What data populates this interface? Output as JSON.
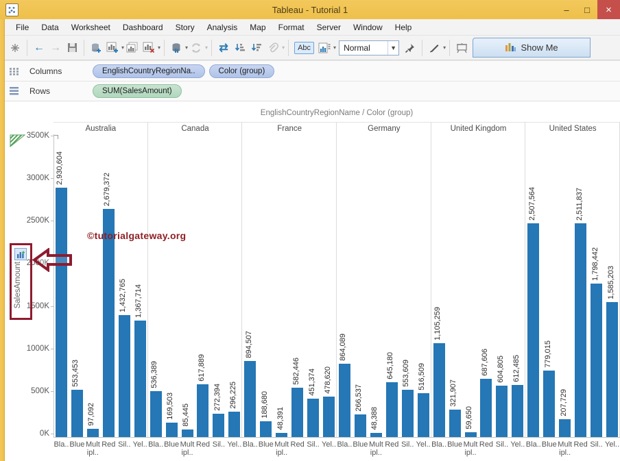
{
  "window": {
    "title": "Tableau - Tutorial 1",
    "minimize_label": "–",
    "maximize_label": "□",
    "close_label": "×"
  },
  "menu": {
    "items": [
      "File",
      "Data",
      "Worksheet",
      "Dashboard",
      "Story",
      "Analysis",
      "Map",
      "Format",
      "Server",
      "Window",
      "Help"
    ]
  },
  "toolbar": {
    "abc_label": "Abc",
    "view_mode_value": "Normal",
    "show_me_label": "Show Me",
    "icons": [
      "tableau-logo-icon",
      "back-arrow-icon",
      "forward-arrow-icon",
      "save-icon",
      "add-datasource-icon",
      "new-worksheet-icon",
      "duplicate-worksheet-icon",
      "clear-worksheet-icon",
      "datasource-icon",
      "refresh-icon",
      "swap-axes-icon",
      "sort-ascending-icon",
      "sort-descending-icon",
      "paperclip-icon",
      "abc-button",
      "mark-labels-icon",
      "view-mode-select",
      "pin-icon",
      "highlight-pen-icon",
      "presentation-icon",
      "show-me-bars-icon"
    ]
  },
  "shelves": {
    "columns_label": "Columns",
    "rows_label": "Rows",
    "columns_pills": [
      "EnglishCountryRegionNa..",
      "Color (group)"
    ],
    "rows_pills": [
      "SUM(SalesAmount)"
    ]
  },
  "watermark": {
    "text": "©tutorialgateway.org",
    "color": "#8E1F24"
  },
  "annotations": {
    "highlight_color": "#8E1B2E",
    "highlighted_element": "SalesAmount axis label",
    "arrow_direction": "left"
  },
  "chart_data": {
    "type": "bar",
    "title": "EnglishCountryRegionName  /  Color (group)",
    "ylabel": "SalesAmount",
    "xlabel": "",
    "ylim": [
      0,
      3500000
    ],
    "yticks": [
      "0K",
      "500K",
      "1000K",
      "1500K",
      "2000K",
      "2500K",
      "3000K",
      "3500K"
    ],
    "grid": false,
    "legend_position": "none",
    "bar_color": "#2577B5",
    "categories": [
      "Australia",
      "Canada",
      "France",
      "Germany",
      "United Kingdom",
      "United States"
    ],
    "subcategories": [
      "Bla..",
      "Blue",
      "Mult\nipl..",
      "Red",
      "Sil..",
      "Yel.."
    ],
    "groups": [
      {
        "country": "Australia",
        "values": [
          2930604,
          553453,
          97092,
          2679372,
          1432765,
          1367714
        ]
      },
      {
        "country": "Canada",
        "values": [
          536389,
          169503,
          85445,
          617889,
          272394,
          296225
        ]
      },
      {
        "country": "France",
        "values": [
          894507,
          188680,
          48391,
          582446,
          451374,
          478620
        ]
      },
      {
        "country": "Germany",
        "values": [
          864089,
          266537,
          48388,
          645180,
          553609,
          516509
        ]
      },
      {
        "country": "United Kingdom",
        "values": [
          1105259,
          321907,
          59650,
          687606,
          604805,
          612485
        ]
      },
      {
        "country": "United States",
        "values": [
          2507564,
          779015,
          207729,
          2511837,
          1798442,
          1585203
        ]
      }
    ]
  }
}
